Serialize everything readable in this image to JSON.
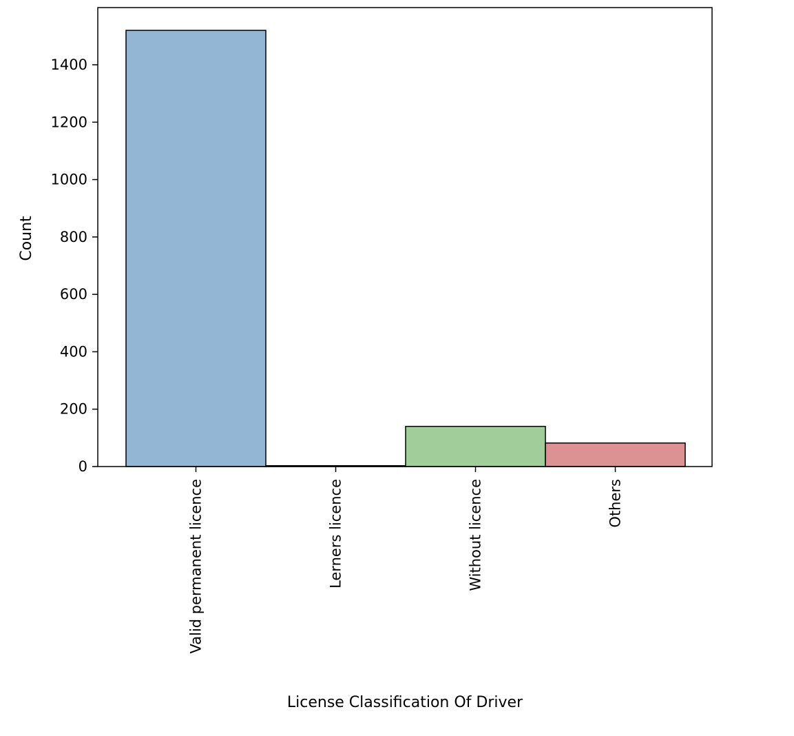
{
  "chart_data": {
    "type": "bar",
    "title": "",
    "xlabel": "License Classification Of Driver",
    "ylabel": "Count",
    "categories": [
      "Valid permanent licence",
      "Lerners licence",
      "Without licence",
      "Others"
    ],
    "values": [
      1520,
      3,
      140,
      82
    ],
    "colors": [
      "#94b6d5",
      "#f0b27a",
      "#a0cd99",
      "#dc9192"
    ],
    "ylim": [
      0,
      1600
    ],
    "yticks": [
      0,
      200,
      400,
      600,
      800,
      1000,
      1200,
      1400
    ],
    "ytick_labels": [
      "0",
      "200",
      "400",
      "600",
      "800",
      "1000",
      "1200",
      "1400"
    ],
    "grid": false,
    "legend": "none",
    "bar_edge_color": "#000000"
  }
}
